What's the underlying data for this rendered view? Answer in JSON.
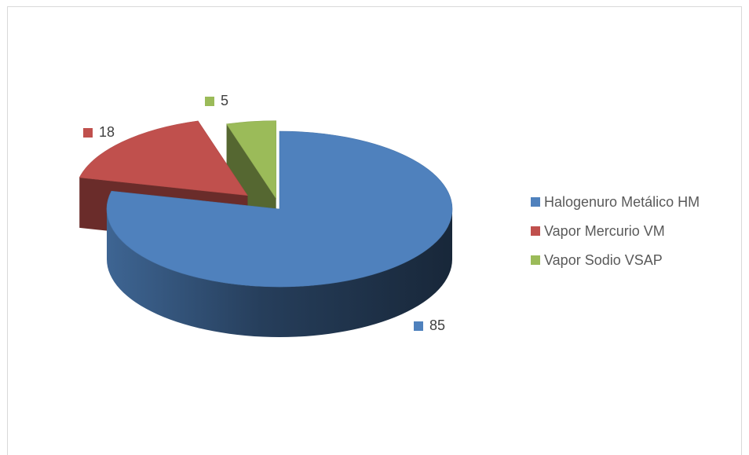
{
  "chart_data": {
    "type": "pie",
    "style": "3d-exploded",
    "categories": [
      "Halogenuro Metálico HM",
      "Vapor Mercurio VM",
      "Vapor Sodio VSAP"
    ],
    "values": [
      85,
      18,
      5
    ],
    "data_labels": [
      "85",
      "18",
      "5"
    ],
    "colors": [
      "#4f81bd",
      "#c0504d",
      "#9bbb59"
    ],
    "legend_position": "right",
    "title": ""
  },
  "legend": {
    "items": [
      {
        "label": "Halogenuro Metálico HM",
        "color": "#4f81bd"
      },
      {
        "label": "Vapor Mercurio VM",
        "color": "#c0504d"
      },
      {
        "label": "Vapor Sodio VSAP",
        "color": "#9bbb59"
      }
    ]
  }
}
